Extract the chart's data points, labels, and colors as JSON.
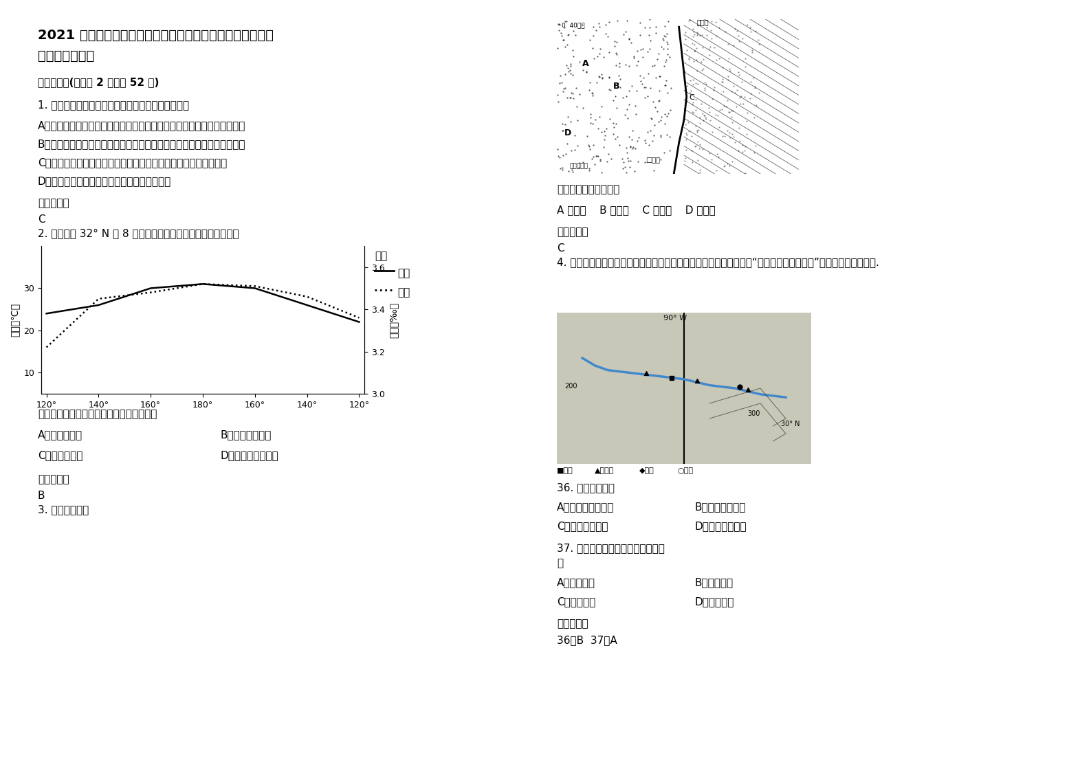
{
  "title_line1": "2021 年江苏省宿迁市特殊教育职业高级中学高三地理下学期",
  "title_line2": "期末试题含解析",
  "section1": "一、选择题(每小题 2 分，共 52 分)",
  "q1_title": "1. 关于山西能源重化工基地的建设的叙述，正确的是",
  "q1_A": "A．为了减少煤炭资源的浪费和滥采，山西省正采取措施缩小煤炭开发规模",
  "q1_B": "B．山西省逐步形成了以公路运输为主、铁路运输为辅的煤炭外运路网体系",
  "q1_C": "C．山西省加强了煤炭的加工转换，从而提高了能源工业的经济效益",
  "q1_D": "D．到目前为止，山西省的产业结构仓十分单一",
  "ref_ans": "参考答案：",
  "q1_ans": "C",
  "q2_title": "2. 下图为沿 32° N 的 8 月份海水盐度和温度分布示意图，回答",
  "chart_ylabel_left": "温度（℃）",
  "chart_ylabel_right": "盐度（‰）",
  "chart_xticklabels": [
    "120°",
    "140°",
    "160°",
    "180°",
    "160°",
    "140°",
    "120°"
  ],
  "chart_legend_title": "图例",
  "chart_legend_salinity": "——盐度",
  "chart_legend_temp": "……温度",
  "salinity_x": [
    0,
    1,
    2,
    3,
    4,
    5,
    6
  ],
  "salinity_y": [
    3.38,
    3.42,
    3.5,
    3.52,
    3.5,
    3.42,
    3.34
  ],
  "temp_x": [
    0,
    1,
    2,
    3,
    4,
    5,
    6
  ],
  "temp_y": [
    16,
    27.5,
    29,
    31,
    30.5,
    28,
    23
  ],
  "temp_ylim": [
    5,
    40
  ],
  "salinity_ylim": [
    3.0,
    3.7
  ],
  "temp_yticks": [
    10,
    20,
    30
  ],
  "salinity_yticks": [
    3.0,
    3.2,
    3.4,
    3.6
  ],
  "q2_question": "形成大洋东、西两屸盐度差异的主要因素是",
  "q2_A": "A．寒暖流流经",
  "q2_B": "B．陆地径流注入",
  "q2_C": "C．海区封闭性",
  "q2_D": "D．降水量和蕲发量",
  "q2_ans": "B",
  "q3_title": "3. 读下图，完成",
  "right_col_map1_caption": "图中铁路干线的名称是",
  "right_col_q3_A": "A 兰新线",
  "right_col_q3_B": "B 兰青线",
  "right_col_q3_C": "C 包兰线",
  "right_col_q3_D": "D 京包线",
  "right_col_q3_ans": "C",
  "q4_title": "4. 美国田纳西河流域是国际上小流域综合开发与治理的成功典范，读“美国田纳西河流域图”，据此完成下列各题.",
  "q36_title": "36. 田纳西河流域",
  "q36_A": "A．地形以平原为主",
  "q36_B": "B．水能资源丰富",
  "q36_C": "C．气候炎热干燥",
  "q36_D": "D．矿产资源贫乏",
  "q37_title": "37. 田纳西河流域综合开发的核心是",
  "q37_A": "A．梯级开发",
  "q37_B": "B．防洪发电",
  "q37_C": "C．提高水质",
  "q37_D": "D．环境建设",
  "q36_37_ans": "36、B  37、A",
  "bg_color": "#ffffff",
  "text_color": "#000000",
  "font_size_title": 13,
  "font_size_body": 11
}
